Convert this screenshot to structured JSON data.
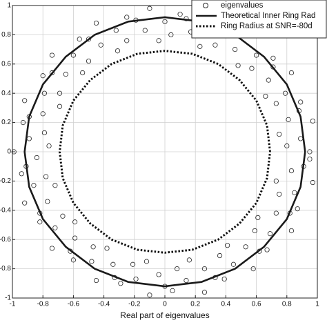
{
  "chart_data": {
    "type": "scatter",
    "xlabel": "Real part of eigenvalues",
    "xlim": [
      -1,
      1
    ],
    "ylim": [
      -1,
      1
    ],
    "xticks": [
      -1,
      -0.8,
      -0.6,
      -0.4,
      -0.2,
      0,
      0.2,
      0.4,
      0.6,
      0.8,
      1
    ],
    "yticks": [
      -1,
      -0.8,
      -0.6,
      -0.4,
      -0.2,
      0,
      0.2,
      0.4,
      0.6,
      0.8,
      1
    ],
    "grid": true,
    "legend": "upper right",
    "series": [
      {
        "name": "eigenvalues",
        "color": "#222222",
        "marker": "o",
        "linestyle": "none",
        "x": [
          0.95,
          0.8,
          0.89,
          0.75,
          0.97,
          0.81,
          0.88,
          0.89,
          0.73,
          0.79,
          0.66,
          0.83,
          0.68,
          0.71,
          0.71,
          0.57,
          0.6,
          0.48,
          0.58,
          0.46,
          0.46,
          0.43,
          0.33,
          0.32,
          0.23,
          0.26,
          0.17,
          0.14,
          0.1,
          0.04,
          0,
          -0.04,
          -0.1,
          -0.13,
          -0.19,
          -0.25,
          -0.25,
          -0.32,
          -0.31,
          -0.45,
          -0.42,
          -0.5,
          -0.56,
          -0.5,
          -0.6,
          -0.54,
          -0.74,
          -0.65,
          -0.74,
          -0.8,
          -0.69,
          -0.79,
          -0.69,
          -0.92,
          -0.8,
          -0.89,
          -0.93,
          -0.79,
          -0.89,
          -0.76,
          -0.99,
          -0.84,
          -0.91,
          -0.94,
          -0.78,
          -0.86,
          -0.72,
          -0.92,
          -0.77,
          -0.82,
          -0.82,
          -0.67,
          -0.72,
          -0.59,
          -0.74,
          -0.59,
          -0.62,
          -0.6,
          -0.47,
          -0.48,
          -0.38,
          -0.45,
          -0.34,
          -0.33,
          -0.29,
          -0.21,
          -0.19,
          -0.12,
          -0.1,
          -0.04,
          0,
          0.05,
          0.08,
          0.14,
          0.16,
          0.26,
          0.26,
          0.33,
          0.39,
          0.36,
          0.45,
          0.41,
          0.58,
          0.53,
          0.62,
          0.67,
          0.59,
          0.69,
          0.61,
          0.83,
          0.73,
          0.82,
          0.87,
          0.75,
          0.85,
          0.73,
          0.97,
          0.83,
          0.91,
          0.95
        ],
        "y": [
          0,
          0.04,
          0.09,
          0.12,
          0.21,
          0.22,
          0.28,
          0.34,
          0.33,
          0.4,
          0.38,
          0.54,
          0.49,
          0.58,
          0.64,
          0.57,
          0.66,
          0.59,
          0.8,
          0.7,
          0.8,
          0.85,
          0.73,
          0.83,
          0.72,
          0.96,
          0.82,
          0.91,
          0.94,
          0.8,
          0.89,
          0.76,
          0.98,
          0.83,
          0.9,
          0.92,
          0.76,
          0.83,
          0.69,
          0.88,
          0.73,
          0.77,
          0.77,
          0.62,
          0.66,
          0.54,
          0.66,
          0.53,
          0.54,
          0.52,
          0.4,
          0.4,
          0.31,
          0.35,
          0.26,
          0.24,
          0.2,
          0.13,
          0.09,
          0.04,
          0,
          -0.04,
          -0.1,
          -0.15,
          -0.17,
          -0.23,
          -0.23,
          -0.35,
          -0.34,
          -0.42,
          -0.48,
          -0.44,
          -0.52,
          -0.48,
          -0.66,
          -0.59,
          -0.68,
          -0.74,
          -0.65,
          -0.75,
          -0.66,
          -0.88,
          -0.77,
          -0.86,
          -0.9,
          -0.77,
          -0.87,
          -0.75,
          -0.98,
          -0.84,
          -0.92,
          -0.95,
          -0.8,
          -0.88,
          -0.74,
          -0.96,
          -0.8,
          -0.86,
          -0.87,
          -0.71,
          -0.77,
          -0.64,
          -0.8,
          -0.65,
          -0.68,
          -0.67,
          -0.54,
          -0.56,
          -0.45,
          -0.54,
          -0.42,
          -0.42,
          -0.39,
          -0.29,
          -0.28,
          -0.2,
          -0.21,
          -0.13,
          -0.1,
          -0.05
        ]
      },
      {
        "name": "Theoretical Inner Ring Rad",
        "color": "#1a1a1a",
        "marker": "none",
        "linestyle": "solid",
        "x": [
          0.92,
          0.89,
          0.8,
          0.65,
          0.46,
          0.24,
          0,
          -0.24,
          -0.46,
          -0.65,
          -0.8,
          -0.89,
          -0.92,
          -0.89,
          -0.8,
          -0.65,
          -0.46,
          -0.24,
          0,
          0.24,
          0.46,
          0.65,
          0.8,
          0.89,
          0.92
        ],
        "y": [
          0,
          0.24,
          0.46,
          0.65,
          0.8,
          0.89,
          0.92,
          0.89,
          0.8,
          0.65,
          0.46,
          0.24,
          0,
          -0.24,
          -0.46,
          -0.65,
          -0.8,
          -0.89,
          -0.92,
          -0.89,
          -0.8,
          -0.65,
          -0.46,
          -0.24,
          0
        ]
      },
      {
        "name": "Ring Radius at SNR=-80d",
        "color": "#111111",
        "marker": "none",
        "linestyle": "dotted",
        "x": [
          0.69,
          0.67,
          0.6,
          0.49,
          0.35,
          0.18,
          0,
          -0.18,
          -0.35,
          -0.49,
          -0.6,
          -0.67,
          -0.69,
          -0.67,
          -0.6,
          -0.49,
          -0.35,
          -0.18,
          0,
          0.18,
          0.35,
          0.49,
          0.6,
          0.67,
          0.69
        ],
        "y": [
          0,
          0.18,
          0.35,
          0.49,
          0.6,
          0.67,
          0.69,
          0.67,
          0.6,
          0.49,
          0.35,
          0.18,
          0,
          -0.18,
          -0.35,
          -0.49,
          -0.6,
          -0.67,
          -0.69,
          -0.67,
          -0.6,
          -0.49,
          -0.35,
          -0.18,
          0
        ]
      }
    ]
  }
}
